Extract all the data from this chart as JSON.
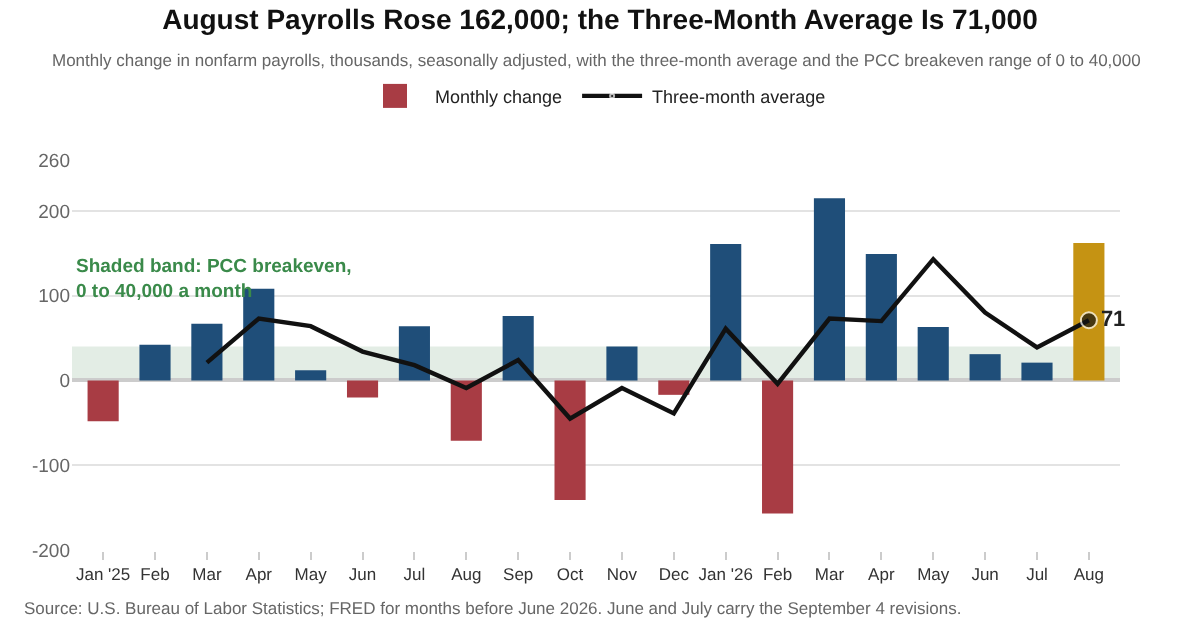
{
  "chart_data": {
    "type": "bar",
    "title": "August Payrolls Rose 162,000; the Three-Month Average Is 71,000",
    "subtitle": "Monthly change in nonfarm payrolls, thousands, seasonally adjusted, with the three-month average and the PCC breakeven range of 0 to 40,000",
    "categories": [
      "Jan '25",
      "Feb",
      "Mar",
      "Apr",
      "May",
      "Jun",
      "Jul",
      "Aug",
      "Sep",
      "Oct",
      "Nov",
      "Dec",
      "Jan '26",
      "Feb",
      "Mar",
      "Apr",
      "May",
      "Jun",
      "Jul",
      "Aug"
    ],
    "series": [
      {
        "name": "Monthly change",
        "color": "#1f4e79",
        "colors": [
          "#a83c44",
          "#1f4e79",
          "#1f4e79",
          "#1f4e79",
          "#1f4e79",
          "#a83c44",
          "#1f4e79",
          "#a83c44",
          "#1f4e79",
          "#a83c44",
          "#1f4e79",
          "#a83c44",
          "#1f4e79",
          "#a83c44",
          "#1f4e79",
          "#1f4e79",
          "#1f4e79",
          "#1f4e79",
          "#1f4e79",
          "#c59313"
        ],
        "values": [
          -48,
          42,
          67,
          108,
          12,
          -20,
          64,
          -71,
          76,
          -141,
          40,
          -17,
          161,
          -157,
          215,
          149,
          63,
          31,
          21,
          162
        ]
      },
      {
        "name": "Three-month average",
        "type": "line",
        "color": "#111111",
        "values": [
          null,
          null,
          21,
          73,
          64,
          34,
          18,
          -9,
          24,
          -45,
          -9,
          -39,
          61,
          -4,
          73,
          70,
          143,
          80,
          39,
          71
        ],
        "value_labels": [
          null,
          null,
          null,
          null,
          null,
          null,
          null,
          null,
          null,
          null,
          null,
          null,
          null,
          null,
          null,
          null,
          null,
          null,
          null,
          "71"
        ]
      }
    ],
    "ylim": [
      -200,
      260
    ],
    "yticks": [
      -200,
      -100,
      0,
      100,
      200,
      260
    ],
    "grid": "y",
    "legend": "top",
    "bands": [
      {
        "axis": "y",
        "from": 0,
        "to": 40,
        "label": "Shaded band: PCC breakeven,\n0 to 40,000 a month",
        "color": "#e3ede5"
      }
    ],
    "annotations": [
      "Source: U.S. Bureau of Labor Statistics; FRED for months before June 2026. June and July carry the September 4 revisions."
    ]
  }
}
